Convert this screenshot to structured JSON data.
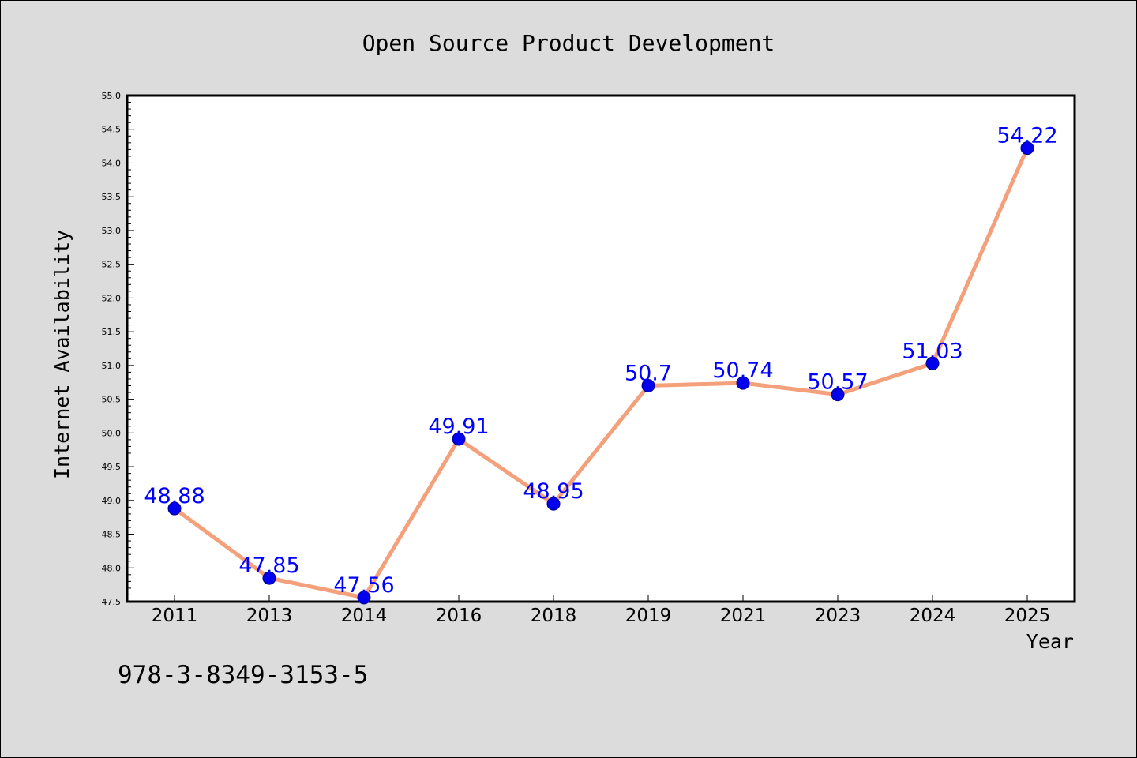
{
  "footer_code": "978-3-8349-3153-5",
  "chart_data": {
    "type": "line",
    "title": "Open Source Product Development",
    "xlabel": "Year",
    "ylabel": "Internet Availability",
    "categories": [
      "2011",
      "2013",
      "2014",
      "2016",
      "2018",
      "2019",
      "2021",
      "2023",
      "2024",
      "2025"
    ],
    "series": [
      {
        "values": [
          48.88,
          47.85,
          47.56,
          49.91,
          48.95,
          50.7,
          50.74,
          50.57,
          51.03,
          54.22
        ],
        "data_labels": [
          "48.88",
          "47.85",
          "47.56",
          "49.91",
          "48.95",
          "50.7",
          "50.74",
          "50.57",
          "51.03",
          "54.22"
        ]
      }
    ],
    "ylim": [
      47.5,
      55.0
    ],
    "yticks": [
      "47.5",
      "48.0",
      "48.5",
      "49.0",
      "49.5",
      "50.0",
      "50.5",
      "51.0",
      "51.5",
      "52.0",
      "52.5",
      "53.0",
      "53.5",
      "54.0",
      "54.5",
      "55.0"
    ],
    "grid": false,
    "legend": false,
    "colors": {
      "line": "#f4a07a",
      "marker": "#0000ee",
      "data_label": "#0000ff",
      "background": "#dcdcdc",
      "plot_area": "#ffffff"
    }
  }
}
